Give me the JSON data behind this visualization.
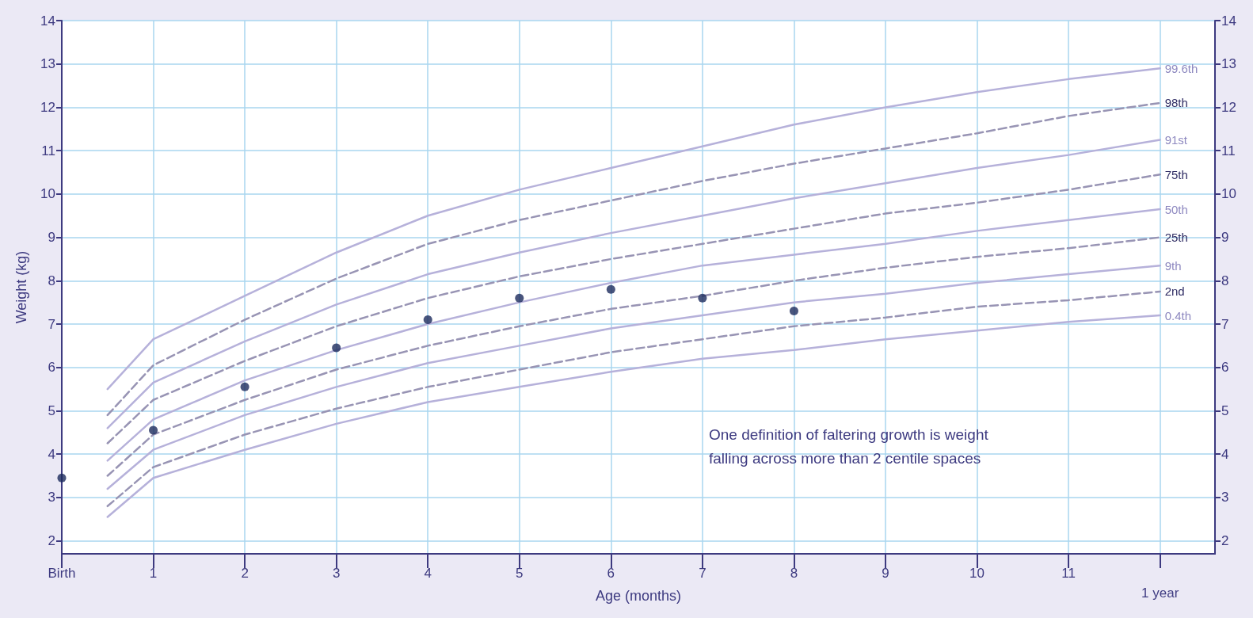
{
  "chart_data": {
    "type": "line",
    "xlabel": "Age (months)",
    "ylabel": "Weight (kg)",
    "annotations": [
      "One definition of faltering growth is weight\nfalling across more than 2 centile spaces",
      "1 year"
    ],
    "xlim": [
      0,
      12.6
    ],
    "xticks": [
      {
        "value": 0,
        "label": "Birth"
      },
      1,
      2,
      3,
      4,
      5,
      6,
      7,
      8,
      9,
      10,
      11,
      {
        "value": 12,
        "label": null
      }
    ],
    "ylim": [
      1.7,
      14
    ],
    "yticks": [
      2,
      3,
      4,
      5,
      6,
      7,
      8,
      9,
      10,
      11,
      12,
      13,
      14
    ],
    "y2lim": [
      1.7,
      14
    ],
    "y2ticks": [
      2,
      3,
      4,
      5,
      6,
      7,
      8,
      9,
      10,
      11,
      12,
      13,
      14
    ],
    "grid": true,
    "legend": false,
    "marker": "none",
    "series": [
      {
        "name": "99.6th",
        "color": "#b6b1da",
        "line_style": "solid",
        "x": [
          0.5,
          1,
          2,
          3,
          4,
          5,
          6,
          7,
          8,
          9,
          10,
          11,
          12
        ],
        "values": [
          5.5,
          6.65,
          7.65,
          8.65,
          9.5,
          10.1,
          10.6,
          11.1,
          11.6,
          12.0,
          12.35,
          12.65,
          12.9
        ]
      },
      {
        "name": "98th",
        "color": "#9894b4",
        "line_style": "dashed",
        "x": [
          0.5,
          1,
          2,
          3,
          4,
          5,
          6,
          7,
          8,
          9,
          10,
          11,
          12
        ],
        "values": [
          4.9,
          6.05,
          7.1,
          8.05,
          8.85,
          9.4,
          9.85,
          10.3,
          10.7,
          11.05,
          11.4,
          11.8,
          12.1
        ]
      },
      {
        "name": "91st",
        "color": "#b6b1da",
        "line_style": "solid",
        "x": [
          0.5,
          1,
          2,
          3,
          4,
          5,
          6,
          7,
          8,
          9,
          10,
          11,
          12
        ],
        "values": [
          4.6,
          5.65,
          6.6,
          7.45,
          8.15,
          8.65,
          9.1,
          9.5,
          9.9,
          10.25,
          10.6,
          10.9,
          11.25
        ]
      },
      {
        "name": "75th",
        "color": "#9894b4",
        "line_style": "dashed",
        "x": [
          0.5,
          1,
          2,
          3,
          4,
          5,
          6,
          7,
          8,
          9,
          10,
          11,
          12
        ],
        "values": [
          4.25,
          5.25,
          6.15,
          6.95,
          7.6,
          8.1,
          8.5,
          8.85,
          9.2,
          9.55,
          9.8,
          10.1,
          10.45
        ]
      },
      {
        "name": "50th",
        "color": "#b6b1da",
        "line_style": "solid",
        "x": [
          0.5,
          1,
          2,
          3,
          4,
          5,
          6,
          7,
          8,
          9,
          10,
          11,
          12
        ],
        "values": [
          3.85,
          4.8,
          5.7,
          6.4,
          7.0,
          7.5,
          7.95,
          8.35,
          8.6,
          8.85,
          9.15,
          9.4,
          9.65
        ]
      },
      {
        "name": "25th",
        "color": "#9894b4",
        "line_style": "dashed",
        "x": [
          0.5,
          1,
          2,
          3,
          4,
          5,
          6,
          7,
          8,
          9,
          10,
          11,
          12
        ],
        "values": [
          3.5,
          4.45,
          5.25,
          5.95,
          6.5,
          6.95,
          7.35,
          7.65,
          8.0,
          8.3,
          8.55,
          8.75,
          9.0
        ]
      },
      {
        "name": "9th",
        "color": "#b6b1da",
        "line_style": "solid",
        "x": [
          0.5,
          1,
          2,
          3,
          4,
          5,
          6,
          7,
          8,
          9,
          10,
          11,
          12
        ],
        "values": [
          3.2,
          4.1,
          4.9,
          5.55,
          6.1,
          6.5,
          6.9,
          7.2,
          7.5,
          7.7,
          7.95,
          8.15,
          8.35
        ]
      },
      {
        "name": "2nd",
        "color": "#9894b4",
        "line_style": "dashed",
        "x": [
          0.5,
          1,
          2,
          3,
          4,
          5,
          6,
          7,
          8,
          9,
          10,
          11,
          12
        ],
        "values": [
          2.8,
          3.7,
          4.45,
          5.05,
          5.55,
          5.95,
          6.35,
          6.65,
          6.95,
          7.15,
          7.4,
          7.55,
          7.75
        ]
      },
      {
        "name": "0.4th",
        "color": "#b6b1da",
        "line_style": "solid",
        "x": [
          0.5,
          1,
          2,
          3,
          4,
          5,
          6,
          7,
          8,
          9,
          10,
          11,
          12
        ],
        "values": [
          2.55,
          3.45,
          4.1,
          4.7,
          5.2,
          5.55,
          5.9,
          6.2,
          6.4,
          6.65,
          6.85,
          7.05,
          7.2
        ]
      },
      {
        "type": "scatter",
        "marker": "circle",
        "color": "#1c2a5c",
        "x": [
          0,
          1,
          2,
          3,
          4,
          5,
          6,
          7,
          8
        ],
        "values": [
          3.45,
          4.55,
          5.55,
          6.45,
          7.1,
          7.6,
          7.8,
          7.6,
          7.3
        ]
      }
    ]
  }
}
